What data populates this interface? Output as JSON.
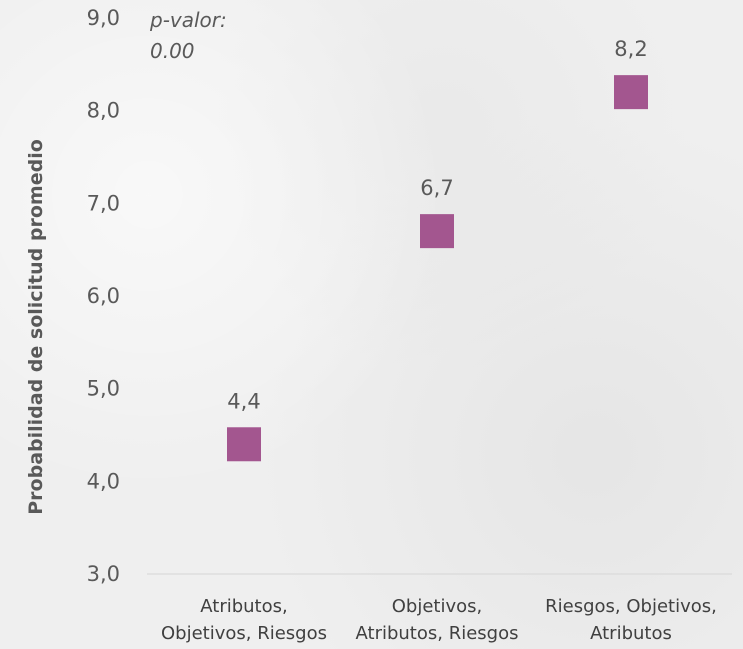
{
  "chart_data": {
    "type": "scatter",
    "title": "",
    "annotation": {
      "line1": "p-valor:",
      "line2": "0.00"
    },
    "ylabel": "Probabilidad de solicitud promedio",
    "xlabel": "",
    "ylim": [
      3.0,
      9.0
    ],
    "yticks": [
      "3,0",
      "4,0",
      "5,0",
      "6,0",
      "7,0",
      "8,0",
      "9,0"
    ],
    "categories": [
      {
        "line1": "Atributos,",
        "line2": "Objetivos, Riesgos"
      },
      {
        "line1": "Objetivos,",
        "line2": "Atributos, Riesgos"
      },
      {
        "line1": "Riesgos, Objetivos,",
        "line2": "Atributos"
      }
    ],
    "values": [
      4.4,
      6.7,
      8.2
    ],
    "data_labels": [
      "4,4",
      "6,7",
      "8,2"
    ],
    "marker": "square",
    "marker_color": "#a3568f",
    "grid": false
  }
}
